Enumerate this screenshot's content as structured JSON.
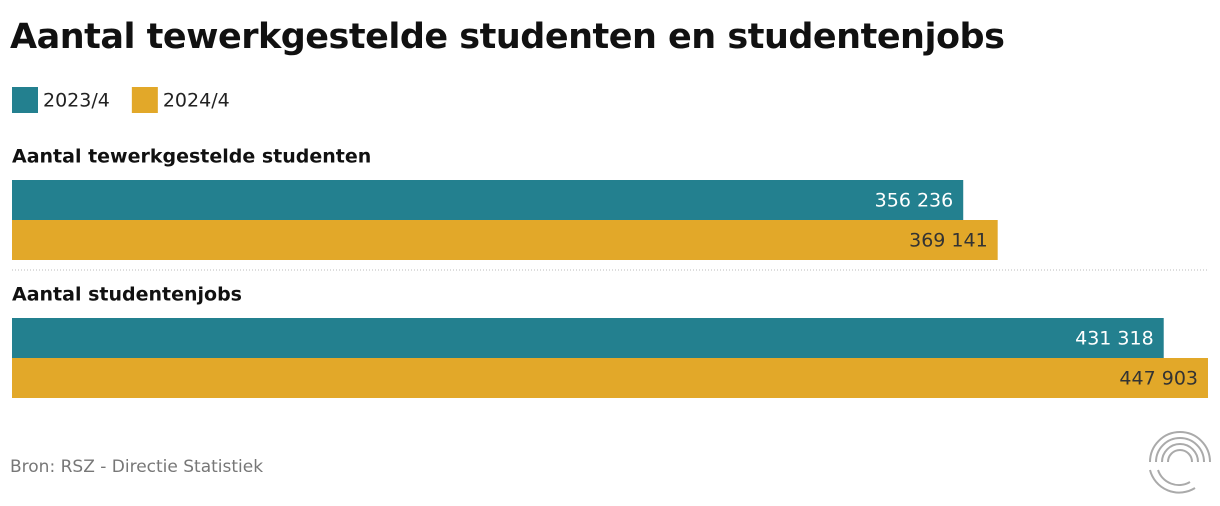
{
  "chart_data": {
    "type": "bar",
    "orientation": "horizontal",
    "title": "Aantal tewerkgestelde studenten en studentenjobs",
    "categories": [
      "Aantal tewerkgestelde studenten",
      "Aantal studentenjobs"
    ],
    "series": [
      {
        "name": "2023/4",
        "color": "#23808f",
        "label_color": "#ffffff",
        "values": [
          356236,
          431318
        ],
        "value_labels": [
          "356 236",
          "431 318"
        ]
      },
      {
        "name": "2024/4",
        "color": "#e2a829",
        "label_color": "#333333",
        "values": [
          369141,
          447903
        ],
        "value_labels": [
          "369 141",
          "447 903"
        ]
      }
    ],
    "source": "Bron: RSZ - Directie Statistiek"
  }
}
